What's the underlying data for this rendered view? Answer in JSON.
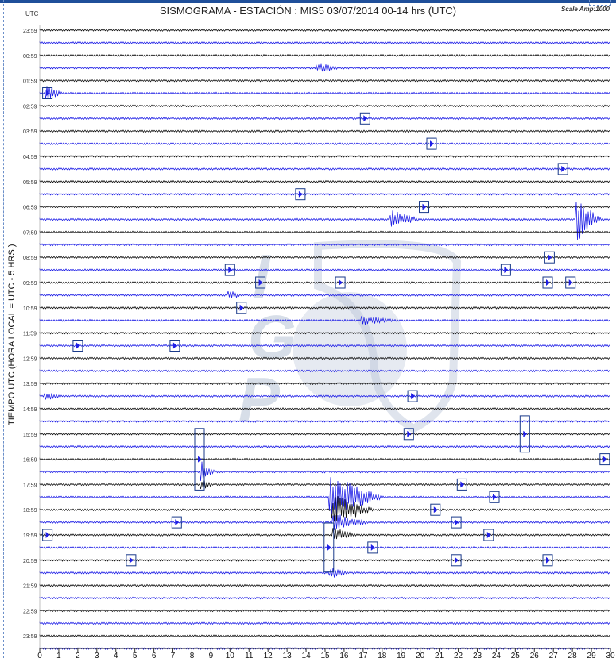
{
  "title": "SISMOGRAMA - ESTACIÓN : MIS5 03/07/2014 00-14 hrs (UTC)",
  "scale_label": "Scale Amp:1000",
  "utc_label": "UTC",
  "ylabel": "TIEMPO UTC (HORA LOCAL = UTC - 5 HRS.)",
  "colors": {
    "trace_a": "#111111",
    "trace_b": "#1f1fe6",
    "marker": "#1a3a8a",
    "watermark": "#b8c4d6",
    "grid": "#c8c8c8"
  },
  "chart_data": {
    "type": "seismogram",
    "xlim": [
      0,
      30
    ],
    "xticks": [
      0,
      1,
      2,
      3,
      4,
      5,
      6,
      7,
      8,
      9,
      10,
      11,
      12,
      13,
      14,
      15,
      16,
      17,
      18,
      19,
      20,
      21,
      22,
      23,
      24,
      25,
      26,
      27,
      28,
      29,
      30
    ],
    "row_labels": [
      "23:59",
      "00:59",
      "01:59",
      "02:59",
      "03:59",
      "04:59",
      "05:59",
      "06:59",
      "07:59",
      "08:59",
      "09:59",
      "10:59",
      "11:59",
      "12:59",
      "13:59",
      "14:59",
      "15:59",
      "16:59",
      "17:59",
      "18:59",
      "19:59",
      "20:59",
      "21:59",
      "22:59",
      "23:59"
    ],
    "rows_per_label": 2,
    "events": [
      {
        "row": 3,
        "x": 14.6,
        "amp": 7,
        "width": 1.2
      },
      {
        "row": 5,
        "x": 0.4,
        "amp": 9,
        "width": 0.8
      },
      {
        "row": 15,
        "x": 18.5,
        "amp": 12,
        "width": 1.6
      },
      {
        "row": 15,
        "x": 28.3,
        "amp": 26,
        "width": 1.2
      },
      {
        "row": 21,
        "x": 10.0,
        "amp": 6,
        "width": 0.6
      },
      {
        "row": 23,
        "x": 17.0,
        "amp": 6,
        "width": 2.0
      },
      {
        "row": 29,
        "x": 0.3,
        "amp": 6,
        "width": 1.0
      },
      {
        "row": 35,
        "x": 8.5,
        "amp": 14,
        "width": 0.7
      },
      {
        "row": 36,
        "x": 8.5,
        "amp": 8,
        "width": 0.6
      },
      {
        "row": 37,
        "x": 15.3,
        "amp": 28,
        "width": 2.8
      },
      {
        "row": 38,
        "x": 15.4,
        "amp": 20,
        "width": 2.2
      },
      {
        "row": 39,
        "x": 15.5,
        "amp": 12,
        "width": 1.8
      },
      {
        "row": 40,
        "x": 15.5,
        "amp": 9,
        "width": 1.2
      },
      {
        "row": 43,
        "x": 15.3,
        "amp": 8,
        "width": 0.9
      }
    ],
    "markers": [
      {
        "row": 5,
        "x": 0.4,
        "h": 1
      },
      {
        "row": 7,
        "x": 17.1,
        "h": 1
      },
      {
        "row": 9,
        "x": 20.6,
        "h": 1
      },
      {
        "row": 11,
        "x": 27.5,
        "h": 1
      },
      {
        "row": 13,
        "x": 13.7,
        "h": 1
      },
      {
        "row": 14,
        "x": 20.2,
        "h": 1
      },
      {
        "row": 18,
        "x": 26.8,
        "h": 1
      },
      {
        "row": 19,
        "x": 10.0,
        "h": 1
      },
      {
        "row": 19,
        "x": 24.5,
        "h": 1
      },
      {
        "row": 20,
        "x": 11.6,
        "h": 1
      },
      {
        "row": 20,
        "x": 15.8,
        "h": 1
      },
      {
        "row": 20,
        "x": 26.7,
        "h": 1
      },
      {
        "row": 20,
        "x": 27.9,
        "h": 1
      },
      {
        "row": 22,
        "x": 10.6,
        "h": 1
      },
      {
        "row": 25,
        "x": 2.0,
        "h": 1
      },
      {
        "row": 25,
        "x": 7.1,
        "h": 1
      },
      {
        "row": 29,
        "x": 19.6,
        "h": 1
      },
      {
        "row": 32,
        "x": 19.4,
        "h": 1
      },
      {
        "row": 32,
        "x": 25.5,
        "h": 3
      },
      {
        "row": 34,
        "x": 29.7,
        "h": 1
      },
      {
        "row": 34,
        "x": 8.4,
        "h": 5
      },
      {
        "row": 36,
        "x": 22.2,
        "h": 1
      },
      {
        "row": 37,
        "x": 23.9,
        "h": 1
      },
      {
        "row": 38,
        "x": 20.8,
        "h": 1
      },
      {
        "row": 39,
        "x": 7.2,
        "h": 1
      },
      {
        "row": 39,
        "x": 21.9,
        "h": 1
      },
      {
        "row": 40,
        "x": 0.4,
        "h": 1
      },
      {
        "row": 40,
        "x": 23.6,
        "h": 1
      },
      {
        "row": 41,
        "x": 17.5,
        "h": 1
      },
      {
        "row": 42,
        "x": 4.8,
        "h": 1
      },
      {
        "row": 42,
        "x": 21.9,
        "h": 1
      },
      {
        "row": 42,
        "x": 26.7,
        "h": 1
      },
      {
        "row": 41,
        "x": 15.2,
        "h": 4
      }
    ]
  },
  "watermark_letters": [
    "I",
    "G",
    "P"
  ]
}
